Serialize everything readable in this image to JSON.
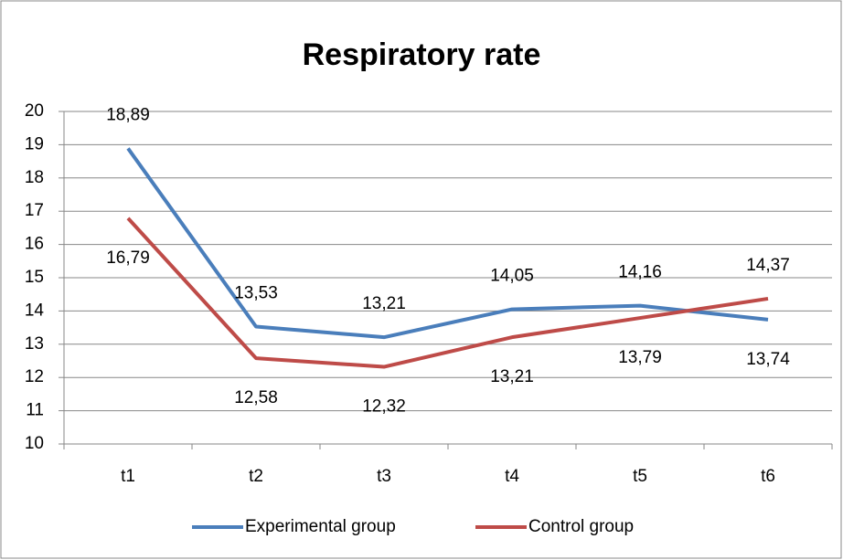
{
  "chart_data": {
    "type": "line",
    "title": "Respiratory rate",
    "categories": [
      "t1",
      "t2",
      "t3",
      "t4",
      "t5",
      "t6"
    ],
    "series": [
      {
        "name": "Experimental group",
        "color": "#4a7ebb",
        "values": [
          18.89,
          13.53,
          13.21,
          14.05,
          14.16,
          13.74
        ],
        "value_labels": [
          "18,89",
          "13,53",
          "13,21",
          "14,05",
          "14,16",
          "13,74"
        ]
      },
      {
        "name": "Control group",
        "color": "#be4b48",
        "values": [
          16.79,
          12.58,
          12.32,
          13.21,
          13.79,
          14.37
        ],
        "value_labels": [
          "16,79",
          "12,58",
          "12,32",
          "13,21",
          "13,79",
          "14,37"
        ]
      }
    ],
    "ylim": [
      10,
      20
    ],
    "yticks": [
      10,
      11,
      12,
      13,
      14,
      15,
      16,
      17,
      18,
      19,
      20
    ],
    "grid": true,
    "legend": "bottom"
  }
}
